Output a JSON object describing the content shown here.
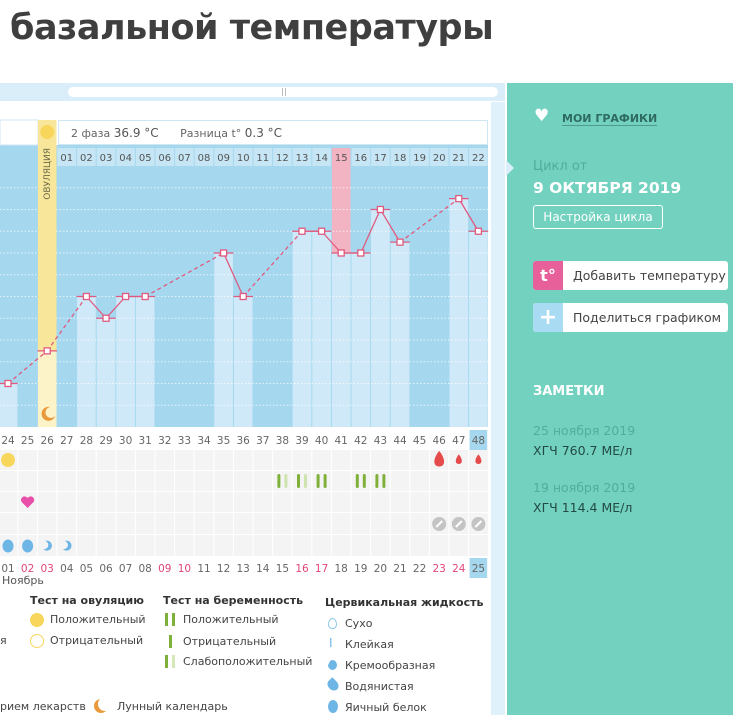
{
  "page": {
    "title": "базальной температуры"
  },
  "chart_header": {
    "phase_label": "2 фаза",
    "phase_value": "36.9 °C",
    "diff_label": "Разница t°",
    "diff_value": "0.3 °C",
    "ovulation_label": "ОВУЛЯЦИЯ"
  },
  "chart_data": {
    "type": "line",
    "cycle_days": [
      24,
      25,
      26,
      27,
      28,
      29,
      30,
      31,
      32,
      33,
      34,
      35,
      36,
      37,
      38,
      39,
      40,
      41,
      42,
      43,
      44,
      45,
      46,
      47,
      48
    ],
    "temperatures": [
      {
        "day": 24,
        "t": 36.2
      },
      {
        "day": 26,
        "t": 36.35
      },
      {
        "day": 28,
        "t": 36.6
      },
      {
        "day": 29,
        "t": 36.5
      },
      {
        "day": 30,
        "t": 36.6
      },
      {
        "day": 31,
        "t": 36.6
      },
      {
        "day": 35,
        "t": 36.8
      },
      {
        "day": 36,
        "t": 36.6
      },
      {
        "day": 39,
        "t": 36.9
      },
      {
        "day": 40,
        "t": 36.9
      },
      {
        "day": 41,
        "t": 36.8
      },
      {
        "day": 42,
        "t": 36.8
      },
      {
        "day": 43,
        "t": 37.0
      },
      {
        "day": 44,
        "t": 36.85
      },
      {
        "day": 47,
        "t": 37.05
      },
      {
        "day": 48,
        "t": 36.9
      }
    ],
    "ylim": [
      36.0,
      37.2
    ],
    "grid": true,
    "ovulation_day": 26,
    "highlighted_day": 41,
    "current_day": 48,
    "phase2_day_labels": [
      "01",
      "02",
      "03",
      "04",
      "05",
      "06",
      "07",
      "08",
      "09",
      "10",
      "11",
      "12",
      "13",
      "14",
      "15",
      "16",
      "17",
      "18",
      "19",
      "20",
      "21",
      "22"
    ],
    "dates": [
      "01",
      "02",
      "03",
      "04",
      "05",
      "06",
      "07",
      "08",
      "09",
      "10",
      "11",
      "12",
      "13",
      "14",
      "15",
      "16",
      "17",
      "18",
      "19",
      "20",
      "21",
      "22",
      "23",
      "24",
      "25"
    ],
    "weekend_dates": [
      "02",
      "03",
      "09",
      "10",
      "16",
      "17",
      "23",
      "24"
    ],
    "month": "Ноябрь",
    "colors": {
      "plot": "#a5d8ef",
      "bar": "#cfe9f8",
      "line": "#e05a7f",
      "ovulation": "#f8e79a",
      "highlight": "#f2b3c3",
      "weekend": "#e0457a"
    }
  },
  "markers": {
    "ovulation_test": [
      {
        "day": 24,
        "result": "positive"
      }
    ],
    "menstruation": [
      {
        "day": 46,
        "size": "large"
      },
      {
        "day": 47,
        "size": "small"
      },
      {
        "day": 48,
        "size": "small"
      }
    ],
    "pregnancy_test": [
      {
        "day": 38,
        "result": "weak-positive"
      },
      {
        "day": 39,
        "result": "weak-positive"
      },
      {
        "day": 40,
        "result": "positive"
      },
      {
        "day": 42,
        "result": "positive"
      },
      {
        "day": 43,
        "result": "positive"
      }
    ],
    "intercourse": [
      {
        "day": 25
      }
    ],
    "medication": [
      {
        "day": 46
      },
      {
        "day": 47
      },
      {
        "day": 48
      }
    ],
    "cervical_fluid": [
      {
        "day": 24,
        "type": "egg-white"
      },
      {
        "day": 25,
        "type": "egg-white"
      },
      {
        "day": 26,
        "type": "creamy"
      },
      {
        "day": 27,
        "type": "creamy"
      }
    ]
  },
  "legend": {
    "cut_label": "я",
    "ovulation_test": {
      "title": "Тест на овуляцию",
      "positive": "Положительный",
      "negative": "Отрицательный"
    },
    "pregnancy_test": {
      "title": "Тест на беременность",
      "positive": "Положительный",
      "negative": "Отрицательный",
      "weak": "Слабоположительный"
    },
    "cervical": {
      "title": "Цервикальная жидкость",
      "dry": "Сухо",
      "sticky": "Клейкая",
      "creamy": "Кремообразная",
      "watery": "Водянистая",
      "egg_white": "Яичный белок"
    },
    "medication": "рием лекарств",
    "moon": "Лунный календарь"
  },
  "panel": {
    "my_charts": "МОИ ГРАФИКИ",
    "cycle_from": "Цикл от",
    "cycle_date": "9 ОКТЯБРЯ 2019",
    "cycle_settings": "Настройка цикла",
    "add_temp_icon": "t°",
    "add_temp": "Добавить температуру",
    "share": "Поделиться графиком",
    "notes_title": "ЗАМЕТКИ",
    "notes": [
      {
        "date": "25 ноября 2019",
        "text": "ХГЧ 760.7 МЕ/л"
      },
      {
        "date": "19 ноября 2019",
        "text": "ХГЧ 114.4 МЕ/л"
      }
    ],
    "colors": {
      "bg": "#72d2bf",
      "pink": "#e8609a",
      "blue": "#a9dcf2"
    }
  }
}
